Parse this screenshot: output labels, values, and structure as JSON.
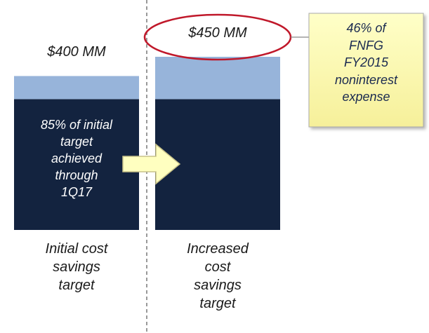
{
  "chart_data": {
    "type": "bar",
    "stacked": true,
    "categories": [
      "Initial cost\nsavings\ntarget",
      "Increased\ncost\nsavings\ntarget"
    ],
    "series": [
      {
        "color": "#13233f",
        "values": [
          340,
          340
        ]
      },
      {
        "color": "#97b4da",
        "values": [
          60,
          110
        ]
      }
    ],
    "totals": [
      400,
      450
    ],
    "total_labels": [
      "$400 MM",
      "$450 MM"
    ],
    "annotations": [
      "85% of initial\ntarget\nachieved\nthrough\n1Q17",
      "46% of\nFNFG\nFY2015\nnoninterest\nexpense"
    ]
  }
}
